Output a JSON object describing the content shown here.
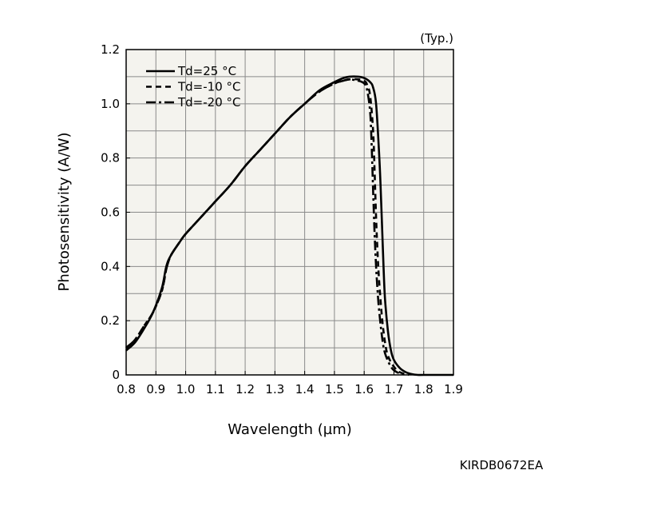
{
  "chart_data": {
    "type": "line",
    "note": "(Typ.)",
    "code": "KIRDB0672EA",
    "xlabel": "Wavelength (µm)",
    "ylabel": "Photosensitivity (A/W)",
    "xlim": [
      0.8,
      1.9
    ],
    "ylim": [
      0,
      1.2
    ],
    "xticks": [
      "0.8",
      "0.9",
      "1.0",
      "1.1",
      "1.2",
      "1.3",
      "1.4",
      "1.5",
      "1.6",
      "1.7",
      "1.8",
      "1.9"
    ],
    "yticks": [
      "0",
      "0.2",
      "0.4",
      "0.6",
      "0.8",
      "1.0",
      "1.2"
    ],
    "grid": true,
    "legend_position": "top-left",
    "background_color": "#f4f3ee",
    "series": [
      {
        "name": "Td=25 °C",
        "style": "solid",
        "x": [
          0.8,
          0.83,
          0.86,
          0.89,
          0.92,
          0.935,
          0.95,
          0.98,
          1.0,
          1.05,
          1.1,
          1.15,
          1.2,
          1.25,
          1.3,
          1.35,
          1.4,
          1.45,
          1.5,
          1.53,
          1.55,
          1.58,
          1.6,
          1.62,
          1.63,
          1.64,
          1.65,
          1.655,
          1.66,
          1.665,
          1.67,
          1.68,
          1.69,
          1.7,
          1.72,
          1.74,
          1.76,
          1.78,
          1.8,
          1.9
        ],
        "y": [
          0.09,
          0.12,
          0.17,
          0.23,
          0.32,
          0.4,
          0.44,
          0.49,
          0.52,
          0.58,
          0.64,
          0.7,
          0.77,
          0.83,
          0.89,
          0.95,
          1.0,
          1.05,
          1.08,
          1.095,
          1.1,
          1.1,
          1.095,
          1.08,
          1.06,
          1.0,
          0.82,
          0.7,
          0.55,
          0.4,
          0.28,
          0.16,
          0.09,
          0.055,
          0.025,
          0.01,
          0.003,
          0.0,
          0.0,
          0.0
        ]
      },
      {
        "name": "Td=-10 °C",
        "style": "dashed",
        "x": [
          0.8,
          0.83,
          0.86,
          0.89,
          0.92,
          0.935,
          0.95,
          0.98,
          1.0,
          1.05,
          1.1,
          1.15,
          1.2,
          1.25,
          1.3,
          1.35,
          1.4,
          1.45,
          1.5,
          1.53,
          1.55,
          1.58,
          1.6,
          1.61,
          1.62,
          1.63,
          1.635,
          1.64,
          1.645,
          1.65,
          1.66,
          1.67,
          1.68,
          1.7,
          1.72,
          1.75
        ],
        "y": [
          0.1,
          0.13,
          0.18,
          0.23,
          0.31,
          0.39,
          0.44,
          0.49,
          0.52,
          0.58,
          0.64,
          0.7,
          0.77,
          0.83,
          0.89,
          0.95,
          1.0,
          1.045,
          1.075,
          1.085,
          1.09,
          1.09,
          1.085,
          1.07,
          1.03,
          0.9,
          0.75,
          0.58,
          0.45,
          0.35,
          0.21,
          0.12,
          0.07,
          0.03,
          0.01,
          0.0
        ]
      },
      {
        "name": "Td=-20 °C",
        "style": "dashdot",
        "x": [
          0.8,
          0.83,
          0.86,
          0.89,
          0.92,
          0.935,
          0.95,
          0.98,
          1.0,
          1.05,
          1.1,
          1.15,
          1.2,
          1.25,
          1.3,
          1.35,
          1.4,
          1.45,
          1.5,
          1.53,
          1.55,
          1.58,
          1.6,
          1.61,
          1.62,
          1.625,
          1.63,
          1.635,
          1.64,
          1.645,
          1.65,
          1.66,
          1.67,
          1.69,
          1.71,
          1.74
        ],
        "y": [
          0.1,
          0.13,
          0.18,
          0.23,
          0.31,
          0.39,
          0.44,
          0.49,
          0.52,
          0.58,
          0.64,
          0.7,
          0.77,
          0.83,
          0.89,
          0.95,
          1.0,
          1.045,
          1.075,
          1.085,
          1.09,
          1.085,
          1.075,
          1.05,
          0.97,
          0.85,
          0.68,
          0.52,
          0.4,
          0.31,
          0.24,
          0.14,
          0.08,
          0.03,
          0.01,
          0.0
        ]
      }
    ]
  }
}
